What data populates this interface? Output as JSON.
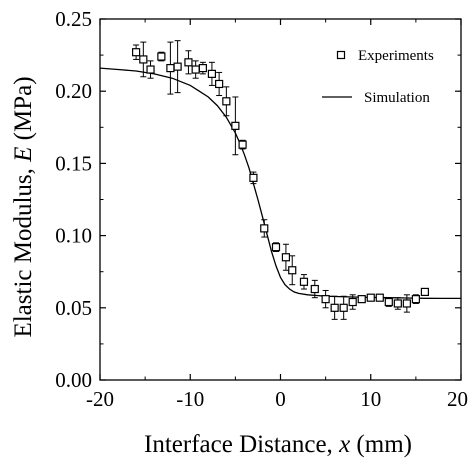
{
  "chart_data": {
    "type": "scatter",
    "title": "",
    "xlabel": {
      "prefix": "Interface Distance, ",
      "var": "x",
      "suffix": " (mm)"
    },
    "ylabel": {
      "prefix": "Elastic Modulus, ",
      "var": "E",
      "suffix": " (MPa)"
    },
    "xlim": [
      -20,
      20
    ],
    "ylim": [
      0.0,
      0.25
    ],
    "xticks": [
      -20,
      -10,
      0,
      10,
      20
    ],
    "xtick_labels": [
      "-20",
      "-10",
      "0",
      "10",
      "20"
    ],
    "yticks": [
      0.0,
      0.05,
      0.1,
      0.15,
      0.2,
      0.25
    ],
    "ytick_labels": [
      "0.00",
      "0.05",
      "0.10",
      "0.15",
      "0.20",
      "0.25"
    ],
    "grid": false,
    "legend_position": "top-right",
    "series": [
      {
        "name": "Experiments",
        "kind": "points-with-errorbars",
        "marker": "open-square",
        "points": [
          {
            "x": -16,
            "y": 0.227,
            "err": 0.005
          },
          {
            "x": -15.2,
            "y": 0.222,
            "err": 0.012
          },
          {
            "x": -14.4,
            "y": 0.215,
            "err": 0.006
          },
          {
            "x": -13.2,
            "y": 0.224,
            "err": 0.003
          },
          {
            "x": -12.2,
            "y": 0.216,
            "err": 0.018
          },
          {
            "x": -11.4,
            "y": 0.217,
            "err": 0.018
          },
          {
            "x": -10.2,
            "y": 0.22,
            "err": 0.008
          },
          {
            "x": -9.4,
            "y": 0.215,
            "err": 0.006
          },
          {
            "x": -8.6,
            "y": 0.216,
            "err": 0.004
          },
          {
            "x": -7.6,
            "y": 0.212,
            "err": 0.008
          },
          {
            "x": -6.8,
            "y": 0.205,
            "err": 0.008
          },
          {
            "x": -6.0,
            "y": 0.193,
            "err": 0.01
          },
          {
            "x": -5.0,
            "y": 0.176,
            "err": 0.02
          },
          {
            "x": -4.2,
            "y": 0.163,
            "err": 0.003
          },
          {
            "x": -3.0,
            "y": 0.14,
            "err": 0.004
          },
          {
            "x": -1.8,
            "y": 0.105,
            "err": 0.006
          },
          {
            "x": -0.5,
            "y": 0.092,
            "err": 0.003
          },
          {
            "x": 0.6,
            "y": 0.085,
            "err": 0.009
          },
          {
            "x": 1.3,
            "y": 0.076,
            "err": 0.01
          },
          {
            "x": 2.6,
            "y": 0.068,
            "err": 0.005
          },
          {
            "x": 3.8,
            "y": 0.063,
            "err": 0.006
          },
          {
            "x": 5.0,
            "y": 0.056,
            "err": 0.006
          },
          {
            "x": 6.0,
            "y": 0.05,
            "err": 0.008
          },
          {
            "x": 7.0,
            "y": 0.05,
            "err": 0.008
          },
          {
            "x": 8.0,
            "y": 0.054,
            "err": 0.005
          },
          {
            "x": 9.0,
            "y": 0.056,
            "err": 0.002
          },
          {
            "x": 10.0,
            "y": 0.057,
            "err": 0.002
          },
          {
            "x": 11.0,
            "y": 0.057,
            "err": 0.002
          },
          {
            "x": 12.0,
            "y": 0.054,
            "err": 0.003
          },
          {
            "x": 13.0,
            "y": 0.053,
            "err": 0.004
          },
          {
            "x": 14.0,
            "y": 0.053,
            "err": 0.006
          },
          {
            "x": 15.0,
            "y": 0.056,
            "err": 0.003
          },
          {
            "x": 16.0,
            "y": 0.061,
            "err": 0.002
          }
        ]
      },
      {
        "name": "Simulation",
        "kind": "line",
        "x": [
          -20,
          -18,
          -16,
          -14,
          -12,
          -10,
          -9,
          -8,
          -7,
          -6,
          -5,
          -4.5,
          -4,
          -3.5,
          -3,
          -2.5,
          -2,
          -1.5,
          -1,
          -0.5,
          0,
          0.5,
          1,
          1.5,
          2,
          3,
          4,
          5,
          6,
          8,
          10,
          12,
          14,
          16,
          18,
          20
        ],
        "y": [
          0.216,
          0.215,
          0.214,
          0.212,
          0.209,
          0.204,
          0.2,
          0.196,
          0.19,
          0.182,
          0.171,
          0.164,
          0.156,
          0.147,
          0.136,
          0.125,
          0.113,
          0.101,
          0.089,
          0.079,
          0.071,
          0.066,
          0.063,
          0.061,
          0.06,
          0.059,
          0.0585,
          0.058,
          0.0578,
          0.0575,
          0.0572,
          0.057,
          0.0568,
          0.0566,
          0.0565,
          0.0565
        ]
      }
    ]
  }
}
